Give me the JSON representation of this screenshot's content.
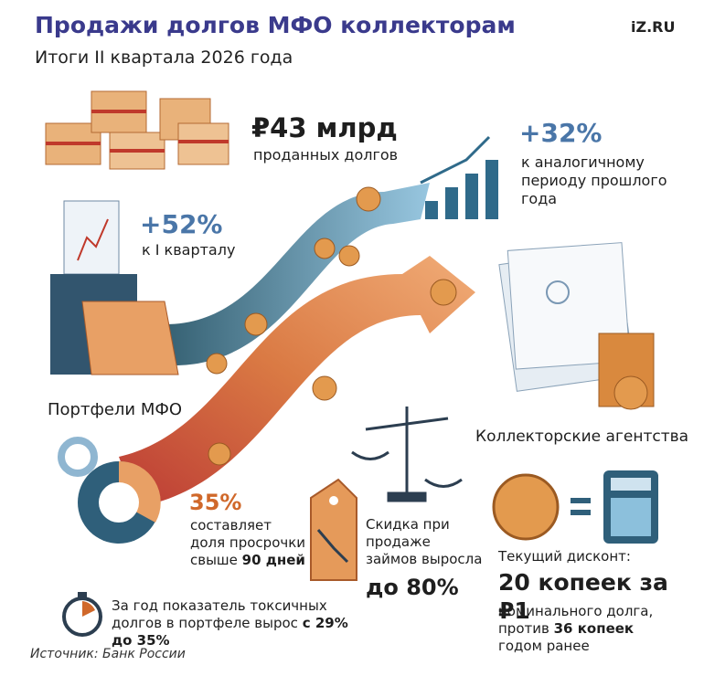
{
  "header": {
    "title": "Продажи долгов МФО коллекторам",
    "subtitle": "Итоги II квартала 2026 года",
    "logo": "iZ.RU"
  },
  "sales": {
    "value": "₽43 млрд",
    "caption": "проданных долгов"
  },
  "yoy": {
    "value": "+32%",
    "caption": "к аналогичному периоду прошлого года"
  },
  "qoq": {
    "value": "+52%",
    "caption": "к I кварталу"
  },
  "labels": {
    "mfo": "Портфели МФО",
    "collectors": "Коллекторские агентства"
  },
  "overdue": {
    "value": "35%",
    "caption": "составляет доля просрочки свыше",
    "caption_bold": "90 дней"
  },
  "discount_growth": {
    "caption": "Скидка при продаже займов выросла",
    "value": "до 80%"
  },
  "current_discount": {
    "label": "Текущий дисконт:",
    "value": "20 копеек за ₽1",
    "caption": "номинального долга, против",
    "caption_bold": "36 копеек",
    "caption_tail": "годом ранее"
  },
  "toxic": {
    "caption": "За год показатель токсичных долгов в портфеле вырос",
    "caption_bold": "с 29% до 35%"
  },
  "footer": {
    "source": "Источник: Банк России"
  }
}
